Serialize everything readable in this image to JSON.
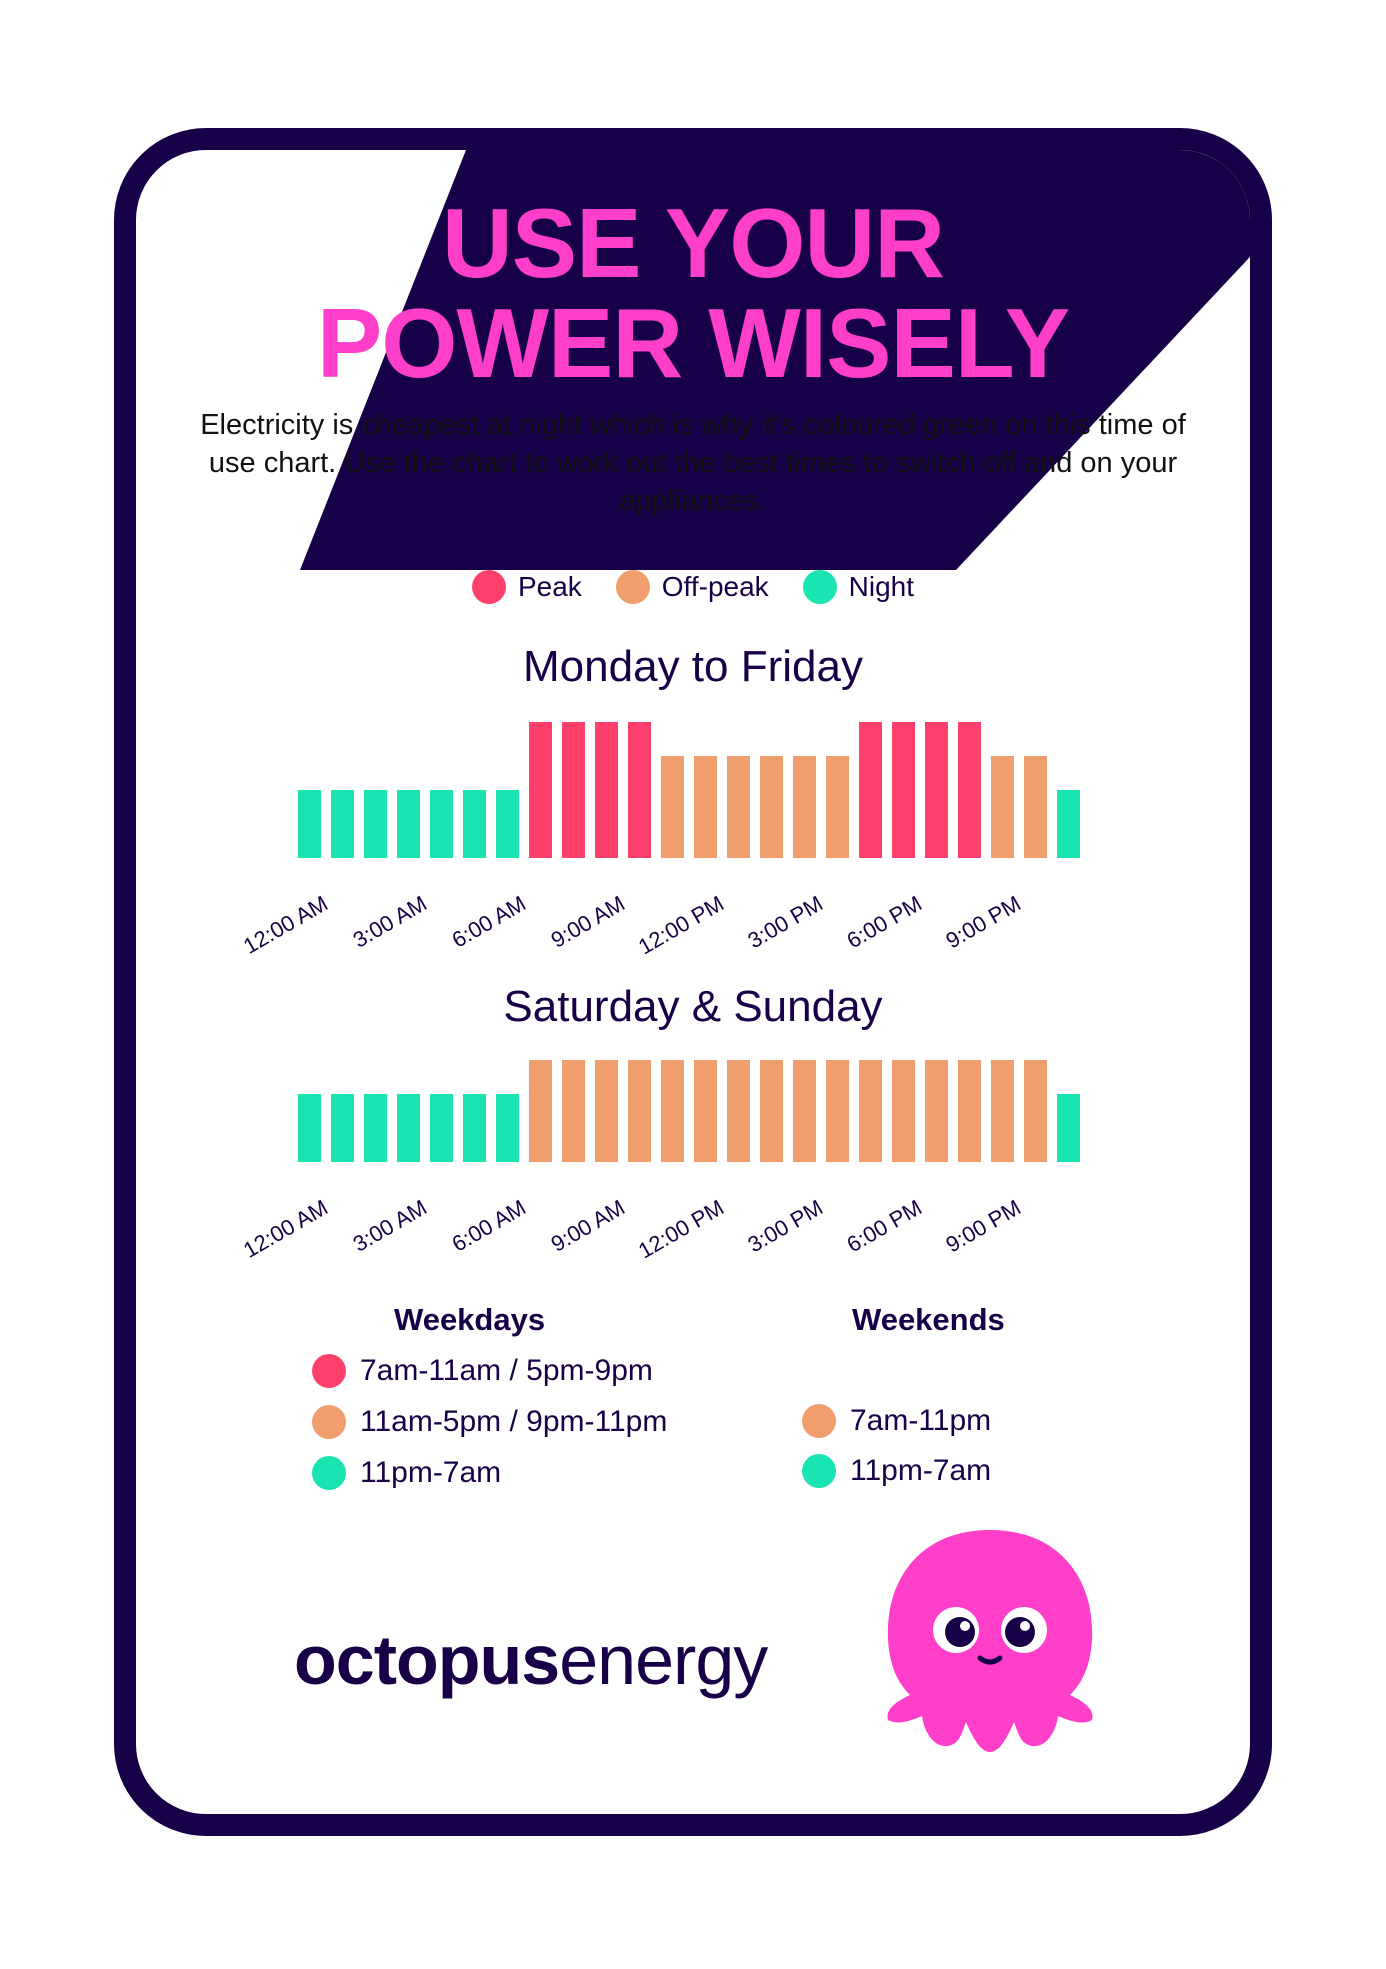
{
  "colors": {
    "peak": "#ff3f6c",
    "offpeak": "#f19e6e",
    "night": "#19e4b2",
    "navy": "#180048",
    "pink": "#ff3ec9"
  },
  "header": {
    "title_line1": "USE YOUR",
    "title_line2": "POWER WISELY"
  },
  "intro": "Electricity is cheapest at night which is why it's coloured green on this time of use chart. Use the chart to work out the best times to switch off and on your appliances.",
  "legend": [
    {
      "label": "Peak",
      "color": "#ff3f6c"
    },
    {
      "label": "Off-peak",
      "color": "#f19e6e"
    },
    {
      "label": "Night",
      "color": "#19e4b2"
    }
  ],
  "chart_data": [
    {
      "type": "bar",
      "title": "Monday to Friday",
      "xlabel": "",
      "ylabel": "",
      "x_tick_labels": [
        "12:00 AM",
        "3:00 AM",
        "6:00 AM",
        "9:00 AM",
        "12:00 PM",
        "3:00 PM",
        "6:00 PM",
        "9:00 PM"
      ],
      "x_tick_every": 3,
      "categories": [
        "12am",
        "1am",
        "2am",
        "3am",
        "4am",
        "5am",
        "6am",
        "7am",
        "8am",
        "9am",
        "10am",
        "11am",
        "12pm",
        "1pm",
        "2pm",
        "3pm",
        "4pm",
        "5pm",
        "6pm",
        "7pm",
        "8pm",
        "9pm",
        "10pm",
        "11pm"
      ],
      "values": [
        2,
        2,
        2,
        2,
        2,
        2,
        2,
        4,
        4,
        4,
        4,
        3,
        3,
        3,
        3,
        3,
        3,
        4,
        4,
        4,
        4,
        3,
        3,
        2
      ],
      "rate": [
        "night",
        "night",
        "night",
        "night",
        "night",
        "night",
        "night",
        "peak",
        "peak",
        "peak",
        "peak",
        "offpeak",
        "offpeak",
        "offpeak",
        "offpeak",
        "offpeak",
        "offpeak",
        "peak",
        "peak",
        "peak",
        "peak",
        "offpeak",
        "offpeak",
        "night"
      ],
      "ylim": [
        0,
        4
      ]
    },
    {
      "type": "bar",
      "title": "Saturday & Sunday",
      "xlabel": "",
      "ylabel": "",
      "x_tick_labels": [
        "12:00 AM",
        "3:00 AM",
        "6:00 AM",
        "9:00 AM",
        "12:00 PM",
        "3:00 PM",
        "6:00 PM",
        "9:00 PM"
      ],
      "x_tick_every": 3,
      "categories": [
        "12am",
        "1am",
        "2am",
        "3am",
        "4am",
        "5am",
        "6am",
        "7am",
        "8am",
        "9am",
        "10am",
        "11am",
        "12pm",
        "1pm",
        "2pm",
        "3pm",
        "4pm",
        "5pm",
        "6pm",
        "7pm",
        "8pm",
        "9pm",
        "10pm",
        "11pm"
      ],
      "values": [
        2,
        2,
        2,
        2,
        2,
        2,
        2,
        3,
        3,
        3,
        3,
        3,
        3,
        3,
        3,
        3,
        3,
        3,
        3,
        3,
        3,
        3,
        3,
        2
      ],
      "rate": [
        "night",
        "night",
        "night",
        "night",
        "night",
        "night",
        "night",
        "offpeak",
        "offpeak",
        "offpeak",
        "offpeak",
        "offpeak",
        "offpeak",
        "offpeak",
        "offpeak",
        "offpeak",
        "offpeak",
        "offpeak",
        "offpeak",
        "offpeak",
        "offpeak",
        "offpeak",
        "offpeak",
        "night"
      ],
      "ylim": [
        0,
        3
      ]
    }
  ],
  "schedule": {
    "weekdays": {
      "heading": "Weekdays",
      "items": [
        {
          "label": "7am-11am / 5pm-9pm",
          "color": "#ff3f6c"
        },
        {
          "label": "11am-5pm / 9pm-11pm",
          "color": "#f19e6e"
        },
        {
          "label": "11pm-7am",
          "color": "#19e4b2"
        }
      ]
    },
    "weekends": {
      "heading": "Weekends",
      "items": [
        {
          "label": "7am-11pm",
          "color": "#f19e6e"
        },
        {
          "label": "11pm-7am",
          "color": "#19e4b2"
        }
      ]
    }
  },
  "brand": {
    "bold": "octopus",
    "light": "energy",
    "mascot": "octopus-mascot-icon"
  }
}
